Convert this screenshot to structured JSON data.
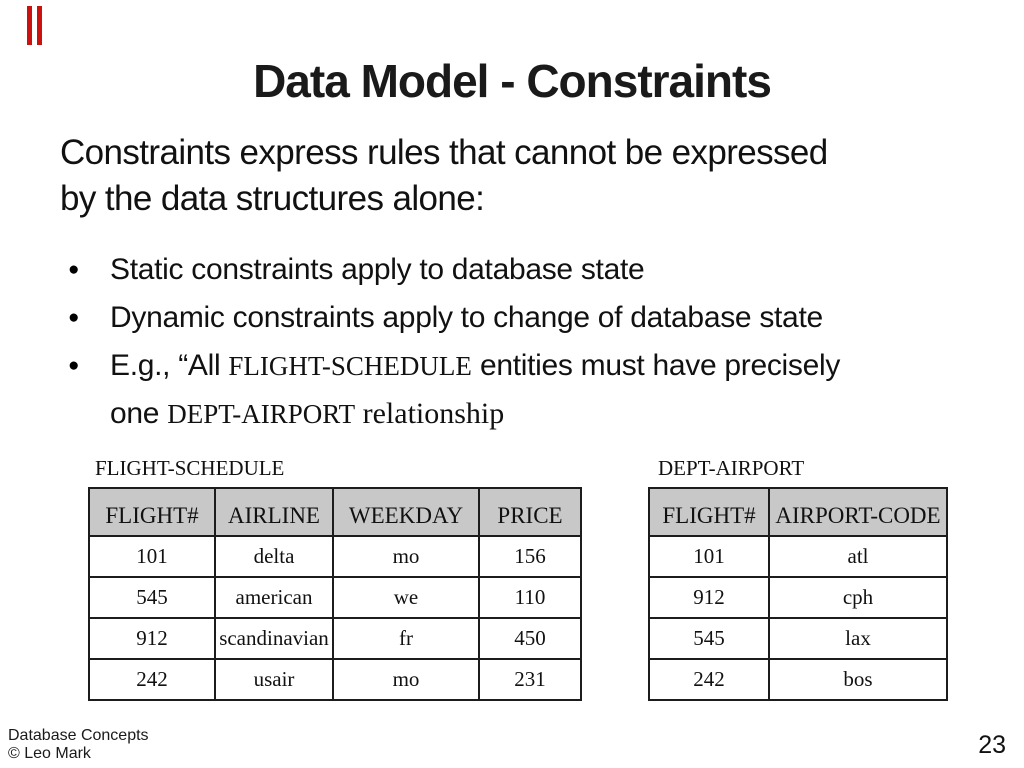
{
  "slide": {
    "title": "Data Model - Constraints",
    "intro": {
      "line1": "Constraints express rules that cannot be expressed",
      "line2": "by the data structures alone:"
    },
    "bullets": {
      "marker": "●",
      "b1": "Static constraints apply to database state",
      "b2": "Dynamic constraints apply to change of database state",
      "b3": {
        "l1a": "E.g., “All ",
        "l1b": "FLIGHT-SCHEDULE",
        "l1c": " entities must have precisely",
        "l2a": "one ",
        "l2b": "DEPT-AIRPORT",
        "l2c": " relationship"
      }
    }
  },
  "tables": {
    "flight_schedule": {
      "caption": "FLIGHT-SCHEDULE",
      "headers": [
        "FLIGHT#",
        "AIRLINE",
        "WEEKDAY",
        "PRICE"
      ],
      "rows": [
        [
          "101",
          "delta",
          "mo",
          "156"
        ],
        [
          "545",
          "american",
          "we",
          "110"
        ],
        [
          "912",
          "scandinavian",
          "fr",
          "450"
        ],
        [
          "242",
          "usair",
          "mo",
          "231"
        ]
      ]
    },
    "dept_airport": {
      "caption": "DEPT-AIRPORT",
      "headers": [
        "FLIGHT#",
        "AIRPORT-CODE"
      ],
      "rows": [
        [
          "101",
          "atl"
        ],
        [
          "912",
          "cph"
        ],
        [
          "545",
          "lax"
        ],
        [
          "242",
          "bos"
        ]
      ]
    }
  },
  "footer": {
    "course": "Database Concepts",
    "copyright": "© Leo Mark",
    "page_number": "23"
  },
  "colors": {
    "header_gray": "#c8c8c8",
    "table_border": "#1c1c1c",
    "accent_red": "#cc1111"
  }
}
